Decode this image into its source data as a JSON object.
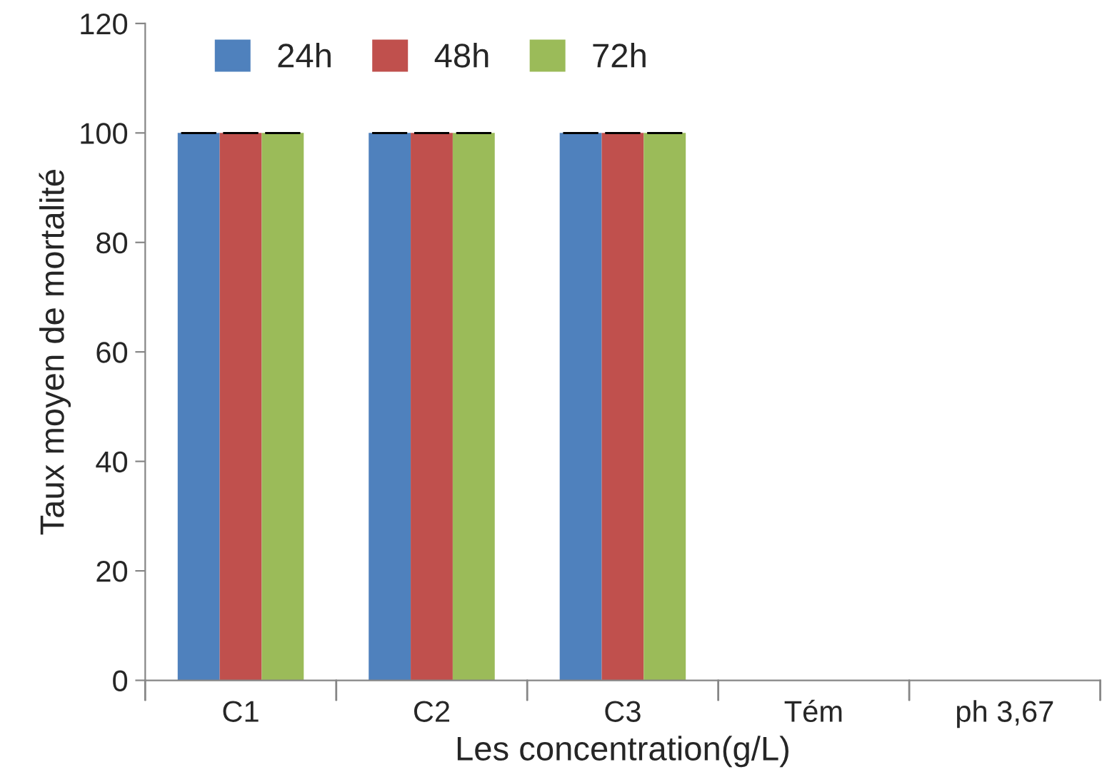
{
  "chart_data": {
    "type": "bar",
    "xlabel": "Les concentration(g/L)",
    "ylabel": "Taux moyen de mortalité",
    "categories": [
      "C1",
      "C2",
      "C3",
      "Tém",
      "ph 3,67"
    ],
    "series": [
      {
        "name": "24h",
        "color": "#4f81bd",
        "values": [
          100,
          100,
          100,
          0,
          0
        ],
        "errors": [
          0,
          0,
          0,
          null,
          null
        ]
      },
      {
        "name": "48h",
        "color": "#c0504d",
        "values": [
          100,
          100,
          100,
          0,
          0
        ],
        "errors": [
          0,
          0,
          0,
          null,
          null
        ]
      },
      {
        "name": "72h",
        "color": "#9bbb59",
        "values": [
          100,
          100,
          100,
          0,
          0
        ],
        "errors": [
          0,
          0,
          0,
          null,
          null
        ]
      }
    ],
    "ylim": [
      0,
      120
    ],
    "yticks": [
      0,
      20,
      40,
      60,
      80,
      100,
      120
    ],
    "grid": false,
    "legend": "top"
  }
}
